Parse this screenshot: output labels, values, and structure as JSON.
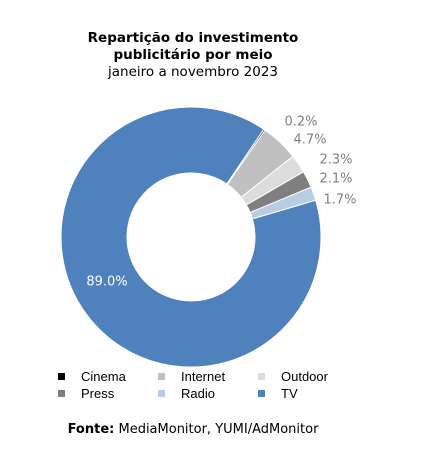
{
  "title_lines": [
    "Repartição do investimento",
    "publicitário por meio"
  ],
  "subtitle": "janeiro a novembro 2023",
  "source": {
    "label": "Fonte:",
    "text": " MediaMonitor, YUMI/AdMonitor"
  },
  "chart_data": {
    "type": "pie",
    "variant": "donut",
    "title": "Repartição do investimento publicitário por meio",
    "subtitle": "janeiro a novembro 2023",
    "slices": [
      {
        "name": "Cinema",
        "value": 0.2,
        "label": "0.2%",
        "color": "#000000"
      },
      {
        "name": "Internet",
        "value": 4.7,
        "label": "4.7%",
        "color": "#c0c0c0"
      },
      {
        "name": "Outdoor",
        "value": 2.3,
        "label": "2.3%",
        "color": "#dcdcdc"
      },
      {
        "name": "Press",
        "value": 2.1,
        "label": "2.1%",
        "color": "#7f7f7f"
      },
      {
        "name": "Radio",
        "value": 1.7,
        "label": "1.7%",
        "color": "#b8cce4"
      },
      {
        "name": "TV",
        "value": 89.0,
        "label": "89.0%",
        "color": "#4f81bd"
      }
    ],
    "legend_position": "bottom",
    "label_color": "#808080",
    "inner_label_color": "#ffffff"
  }
}
